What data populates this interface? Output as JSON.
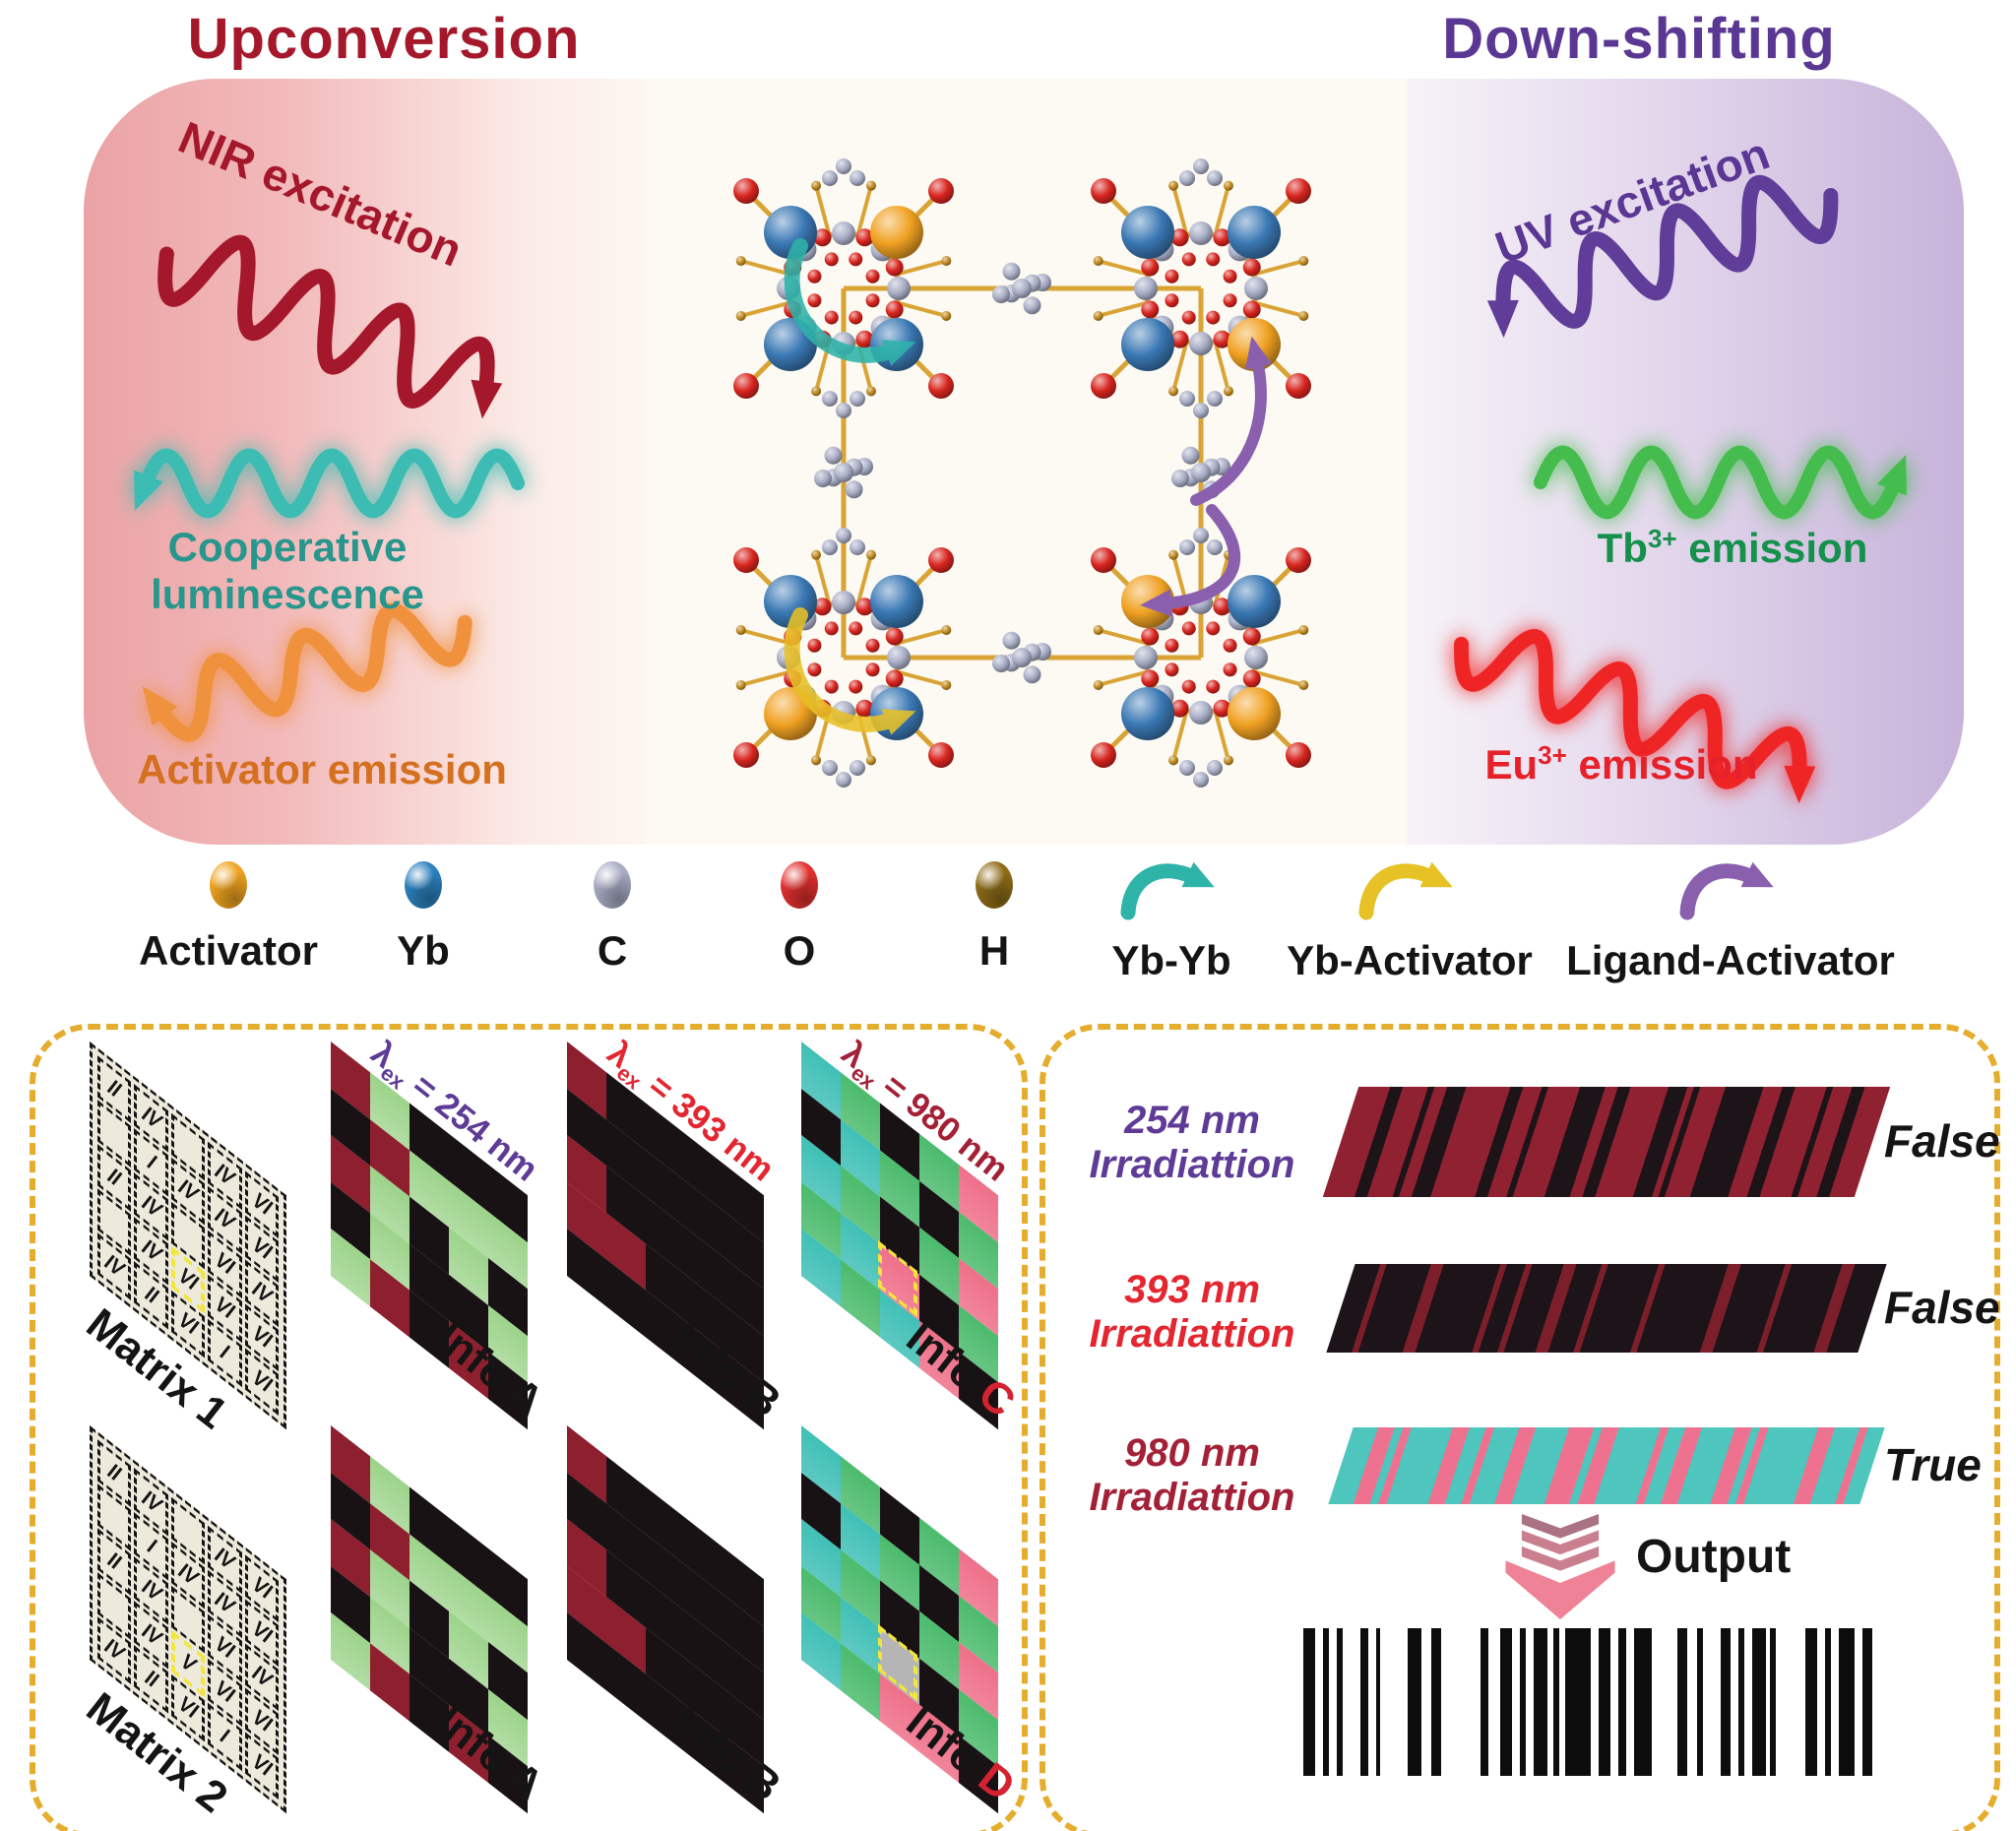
{
  "titles": {
    "left": "Upconversion",
    "right": "Down-shifting"
  },
  "waves": {
    "nir": {
      "label": "NIR excitation",
      "text_color": "#a5182b",
      "wave_color": "#a5182b"
    },
    "coop": {
      "label": "Cooperative luminescence",
      "text_color": "#27968d",
      "wave_color": "#3cbcb2"
    },
    "act": {
      "label": "Activator emission",
      "text_color": "#d4701f",
      "wave_color": "#f0913e"
    },
    "uv": {
      "label": "UV excitation",
      "text_color": "#5b3794",
      "wave_color": "#5f3d99"
    },
    "tb": {
      "base": "Tb",
      "sup": "3+",
      "rest": " emission",
      "text_color": "#15914c",
      "wave_color": "#44bd4e"
    },
    "eu": {
      "base": "Eu",
      "sup": "3+",
      "rest": " emission",
      "text_color": "#e62129",
      "wave_color": "#ef2525"
    }
  },
  "legend": {
    "atoms": [
      {
        "label": "Activator",
        "color": "#efa31f"
      },
      {
        "label": "Yb",
        "color": "#2b80bd"
      },
      {
        "label": "C",
        "color": "#a8abc4"
      },
      {
        "label": "O",
        "color": "#e1302e"
      },
      {
        "label": "H",
        "color": "#8f6c17"
      }
    ],
    "transfers": [
      {
        "label": "Yb-Yb",
        "color": "#2eb3a9"
      },
      {
        "label": "Yb-Activator",
        "color": "#e7c226"
      },
      {
        "label": "Ligand-Activator",
        "color": "#8a60ae"
      }
    ]
  },
  "molecule": {
    "atom_colors": {
      "yb": "#3a78b4",
      "act": "#f0a122",
      "c": "#a9aec6",
      "o": "#d8251f",
      "bond": "#d9a435",
      "h": "#c08b22"
    },
    "clusters": [
      {
        "corners": [
          "yb",
          "act",
          "yb",
          "yb"
        ],
        "arrow": "ybyb"
      },
      {
        "corners": [
          "yb",
          "yb",
          "yb",
          "act"
        ],
        "arrow": "ligact-up"
      },
      {
        "corners": [
          "yb",
          "yb",
          "act",
          "yb"
        ],
        "arrow": "ybact"
      },
      {
        "corners": [
          "act",
          "yb",
          "yb",
          "act"
        ],
        "arrow": "ligact-down"
      }
    ],
    "arrow_colors": {
      "ybyb": "#2eb3a9",
      "ybact": "#e8c127",
      "ligact": "#8a60ae"
    }
  },
  "matrix_panel": {
    "palette": {
      "r": "#8e1f2e",
      "g": "#9cd38a",
      "k": "#191215",
      "t": "#40c0b6",
      "G": "#4cbb6d",
      "p": "#ee7089",
      "x": "#b5b5b5"
    },
    "highlight_color": "#f2e53c",
    "rows": [
      {
        "tiles": [
          {
            "type": "matrix",
            "label": "Matrix 1",
            "cells": [
              [
                "II",
                "IV",
                "",
                "IV",
                "VI"
              ],
              [
                "",
                "I",
                "IV",
                "IV",
                "VI"
              ],
              [
                "II",
                "IV",
                "",
                "VI",
                "IV"
              ],
              [
                "",
                "IV",
                "VI",
                "VI",
                "VI"
              ],
              [
                "IV",
                "II",
                "VI",
                "I",
                "VI"
              ]
            ],
            "highlight": {
              "row": 3,
              "col": 2
            }
          },
          {
            "type": "info",
            "label": "Info",
            "letter": "A",
            "letter_color": "#151515",
            "lambda": {
              "sym": "λ",
              "sub": "ex",
              "rest": " = 254 nm",
              "color": "#5d3b96"
            },
            "cells": [
              [
                "r",
                "g",
                "k",
                "k",
                "k"
              ],
              [
                "k",
                "r",
                "g",
                "g",
                "g"
              ],
              [
                "r",
                "g",
                "k",
                "g",
                "k"
              ],
              [
                "k",
                "g",
                "k",
                "k",
                "g"
              ],
              [
                "g",
                "r",
                "k",
                "r",
                "k"
              ]
            ]
          },
          {
            "type": "info",
            "label": "Info",
            "letter": "B",
            "letter_color": "#151515",
            "lambda": {
              "sym": "λ",
              "sub": "ex",
              "rest": " = 393 nm",
              "color": "#e32630"
            },
            "cells": [
              [
                "r",
                "k",
                "k",
                "k",
                "k"
              ],
              [
                "k",
                "k",
                "k",
                "k",
                "k"
              ],
              [
                "r",
                "k",
                "k",
                "k",
                "k"
              ],
              [
                "r",
                "r",
                "k",
                "k",
                "k"
              ],
              [
                "k",
                "k",
                "k",
                "k",
                "k"
              ]
            ]
          },
          {
            "type": "info",
            "label": "Info",
            "letter": "C",
            "letter_color": "#d42330",
            "lambda": {
              "sym": "λ",
              "sub": "ex",
              "rest": " = 980 nm",
              "color": "#a32036"
            },
            "cells": [
              [
                "t",
                "G",
                "k",
                "G",
                "p"
              ],
              [
                "k",
                "t",
                "G",
                "k",
                "G"
              ],
              [
                "t",
                "G",
                "k",
                "G",
                "p"
              ],
              [
                "G",
                "t",
                "p",
                "k",
                "G"
              ],
              [
                "t",
                "G",
                "t",
                "p",
                "k"
              ]
            ],
            "highlight": {
              "row": 3,
              "col": 2
            }
          }
        ]
      },
      {
        "tiles": [
          {
            "type": "matrix",
            "label": "Matrix 2",
            "cells": [
              [
                "II",
                "IV",
                "",
                "IV",
                "VI"
              ],
              [
                "",
                "I",
                "IV",
                "IV",
                "VI"
              ],
              [
                "II",
                "IV",
                "",
                "VI",
                "IV"
              ],
              [
                "",
                "IV",
                "V",
                "VI",
                "VI"
              ],
              [
                "IV",
                "II",
                "VI",
                "I",
                "VI"
              ]
            ],
            "highlight": {
              "row": 3,
              "col": 2
            }
          },
          {
            "type": "info",
            "label": "Info",
            "letter": "A",
            "letter_color": "#151515",
            "cells": [
              [
                "r",
                "g",
                "k",
                "k",
                "k"
              ],
              [
                "k",
                "r",
                "g",
                "g",
                "g"
              ],
              [
                "r",
                "g",
                "k",
                "g",
                "k"
              ],
              [
                "k",
                "g",
                "k",
                "k",
                "g"
              ],
              [
                "g",
                "r",
                "k",
                "r",
                "k"
              ]
            ]
          },
          {
            "type": "info",
            "label": "Info",
            "letter": "B",
            "letter_color": "#151515",
            "cells": [
              [
                "r",
                "k",
                "k",
                "k",
                "k"
              ],
              [
                "k",
                "k",
                "k",
                "k",
                "k"
              ],
              [
                "r",
                "k",
                "k",
                "k",
                "k"
              ],
              [
                "r",
                "r",
                "k",
                "k",
                "k"
              ],
              [
                "k",
                "k",
                "k",
                "k",
                "k"
              ]
            ]
          },
          {
            "type": "info",
            "label": "Info",
            "letter": "D",
            "letter_color": "#d42330",
            "cells": [
              [
                "t",
                "G",
                "k",
                "G",
                "p"
              ],
              [
                "k",
                "t",
                "G",
                "k",
                "G"
              ],
              [
                "t",
                "G",
                "k",
                "G",
                "p"
              ],
              [
                "G",
                "t",
                "x",
                "k",
                "G"
              ],
              [
                "t",
                "G",
                "p",
                "p",
                "k"
              ]
            ],
            "highlight": {
              "row": 3,
              "col": 2
            }
          }
        ]
      }
    ]
  },
  "output_panel": {
    "rows": [
      {
        "line1": "254 nm",
        "line2": "Irradiattion",
        "label_color": "#5d3b96",
        "result": "False",
        "stripe_colors": [
          "#8f2130",
          "#1c1418"
        ],
        "stripes": [
          [
            5,
            0
          ],
          [
            2,
            1
          ],
          [
            4,
            0
          ],
          [
            1,
            1
          ],
          [
            2,
            0
          ],
          [
            3,
            1
          ],
          [
            7,
            0
          ],
          [
            2,
            1
          ],
          [
            3,
            0
          ],
          [
            1,
            1
          ],
          [
            5,
            0
          ],
          [
            4,
            1
          ],
          [
            2,
            0
          ],
          [
            2,
            1
          ],
          [
            6,
            0
          ],
          [
            3,
            1
          ],
          [
            1,
            0
          ],
          [
            1,
            1
          ],
          [
            4,
            0
          ],
          [
            6,
            1
          ],
          [
            3,
            0
          ],
          [
            2,
            1
          ],
          [
            5,
            0
          ],
          [
            1,
            1
          ],
          [
            3,
            0
          ],
          [
            2,
            1
          ],
          [
            4,
            0
          ]
        ]
      },
      {
        "line1": "393 nm",
        "line2": "Irradiattion",
        "label_color": "#e32630",
        "result": "False",
        "stripe_colors": [
          "#1c1418",
          "#7d1f2a"
        ],
        "stripes": [
          [
            4,
            0
          ],
          [
            1,
            1
          ],
          [
            7,
            0
          ],
          [
            2,
            1
          ],
          [
            9,
            0
          ],
          [
            1,
            1
          ],
          [
            3,
            0
          ],
          [
            1,
            1
          ],
          [
            5,
            0
          ],
          [
            2,
            1
          ],
          [
            4,
            0
          ],
          [
            1,
            1
          ],
          [
            8,
            0
          ],
          [
            1,
            1
          ],
          [
            10,
            0
          ],
          [
            2,
            1
          ],
          [
            7,
            0
          ],
          [
            1,
            1
          ],
          [
            8,
            0
          ],
          [
            2,
            1
          ],
          [
            5,
            0
          ]
        ]
      },
      {
        "line1": "980 nm",
        "line2": "Irradiattion",
        "label_color": "#a32036",
        "result": "True",
        "stripe_colors": [
          "#4fc6bd",
          "#ef7190"
        ],
        "stripes": [
          [
            3,
            0
          ],
          [
            2,
            1
          ],
          [
            1,
            0
          ],
          [
            1,
            1
          ],
          [
            5,
            0
          ],
          [
            2,
            1
          ],
          [
            2,
            0
          ],
          [
            1,
            1
          ],
          [
            3,
            0
          ],
          [
            2,
            1
          ],
          [
            4,
            0
          ],
          [
            3,
            1
          ],
          [
            1,
            0
          ],
          [
            2,
            1
          ],
          [
            5,
            0
          ],
          [
            1,
            1
          ],
          [
            2,
            0
          ],
          [
            2,
            1
          ],
          [
            4,
            0
          ],
          [
            2,
            1
          ],
          [
            1,
            0
          ],
          [
            1,
            1
          ],
          [
            6,
            0
          ],
          [
            2,
            1
          ],
          [
            3,
            0
          ],
          [
            1,
            1
          ],
          [
            2,
            0
          ]
        ]
      }
    ],
    "output_label": "Output",
    "arrow_colors": [
      "#aa7282",
      "#c97f8f",
      "#ef8296"
    ],
    "barcode": [
      [
        12,
        8
      ],
      [
        6,
        8
      ],
      [
        6,
        18
      ],
      [
        8,
        8
      ],
      [
        4,
        28
      ],
      [
        14,
        10
      ],
      [
        10,
        40
      ],
      [
        8,
        12
      ],
      [
        12,
        8
      ],
      [
        6,
        8
      ],
      [
        14,
        6
      ],
      [
        6,
        6
      ],
      [
        26,
        8
      ],
      [
        12,
        8
      ],
      [
        8,
        8
      ],
      [
        18,
        26
      ],
      [
        10,
        10
      ],
      [
        6,
        18
      ],
      [
        10,
        8
      ],
      [
        6,
        8
      ],
      [
        14,
        4
      ],
      [
        6,
        30
      ],
      [
        12,
        8
      ],
      [
        6,
        8
      ],
      [
        16,
        8
      ],
      [
        10,
        0
      ]
    ]
  }
}
